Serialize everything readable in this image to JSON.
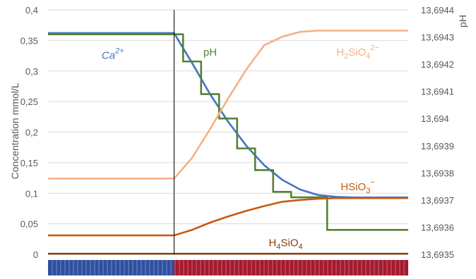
{
  "chart_data": {
    "type": "line",
    "x": [
      0,
      5,
      10,
      15,
      20,
      25,
      30,
      35,
      40,
      45,
      50,
      55,
      60,
      65,
      70,
      75,
      80,
      85,
      90,
      95,
      100
    ],
    "x_phase_boundary": 35,
    "ylabel": "Concentration mmol/L",
    "y2label": "pH",
    "ylim": [
      0,
      0.4
    ],
    "y2lim": [
      13.6935,
      13.6944
    ],
    "y_ticks": [
      "0",
      "0,05",
      "0,1",
      "0,15",
      "0,2",
      "0,25",
      "0,3",
      "0,35",
      "0,4"
    ],
    "y2_ticks": [
      "13,6935",
      "13,6936",
      "13,6937",
      "13,6938",
      "13,6939",
      "13,694",
      "13,6941",
      "13,6942",
      "13,6943",
      "13,6944"
    ],
    "grid": true,
    "series": [
      {
        "name": "Ca2+",
        "axis": "left",
        "color": "#4472c4",
        "values": [
          0.362,
          0.362,
          0.362,
          0.362,
          0.362,
          0.362,
          0.362,
          0.362,
          0.313,
          0.262,
          0.217,
          0.178,
          0.146,
          0.122,
          0.106,
          0.097,
          0.094,
          0.093,
          0.093,
          0.093,
          0.093
        ]
      },
      {
        "name": "pH",
        "axis": "right",
        "color": "#548235",
        "step": true,
        "values": [
          13.69431,
          13.69431,
          13.69431,
          13.69431,
          13.69431,
          13.69431,
          13.69431,
          13.69431,
          13.69421,
          13.69409,
          13.694,
          13.69389,
          13.69381,
          13.69373,
          13.69371,
          13.69371,
          13.69359,
          13.69359,
          13.69359,
          13.69359,
          13.69359
        ]
      },
      {
        "name": "H2SiO4 2-",
        "axis": "left",
        "color": "#f4b183",
        "values": [
          0.124,
          0.124,
          0.124,
          0.124,
          0.124,
          0.124,
          0.124,
          0.124,
          0.158,
          0.205,
          0.255,
          0.302,
          0.342,
          0.356,
          0.364,
          0.366,
          0.366,
          0.366,
          0.366,
          0.366,
          0.366
        ]
      },
      {
        "name": "HSiO3-",
        "axis": "left",
        "color": "#c55a11",
        "values": [
          0.031,
          0.031,
          0.031,
          0.031,
          0.031,
          0.031,
          0.031,
          0.031,
          0.04,
          0.052,
          0.062,
          0.071,
          0.079,
          0.086,
          0.089,
          0.091,
          0.092,
          0.092,
          0.092,
          0.092,
          0.092
        ]
      },
      {
        "name": "H4SiO4",
        "axis": "left",
        "color": "#843c0c",
        "values": [
          0.001,
          0.001,
          0.001,
          0.001,
          0.001,
          0.001,
          0.001,
          0.001,
          0.001,
          0.001,
          0.001,
          0.001,
          0.001,
          0.001,
          0.001,
          0.001,
          0.001,
          0.001,
          0.001,
          0.001,
          0.001
        ]
      }
    ],
    "annotations": [
      {
        "id": "ca",
        "base": "Ca",
        "sup": "2+",
        "italic": true,
        "color": "#4472c4",
        "x": 18,
        "y": 0.32
      },
      {
        "id": "ph",
        "base": "pH",
        "color": "#548235",
        "x": 45,
        "y": 0.325
      },
      {
        "id": "h2sio4",
        "base": "H",
        "sub1": "2",
        "mid": "SiO",
        "sub2": "4",
        "sup": "2−",
        "color": "#f4b183",
        "x": 86,
        "y": 0.325
      },
      {
        "id": "hsio3",
        "base": "HSiO",
        "sub2": "3",
        "sup": "−",
        "color": "#c55a11",
        "x": 86,
        "y": 0.105
      },
      {
        "id": "h4sio4",
        "base": "H",
        "sub1": "4",
        "mid": "SiO",
        "sub2": "4",
        "color": "#843c0c",
        "x": 66,
        "y": 0.013
      }
    ],
    "phase_bar": {
      "colors": [
        "#2f4f9f",
        "#a5192e"
      ]
    }
  }
}
